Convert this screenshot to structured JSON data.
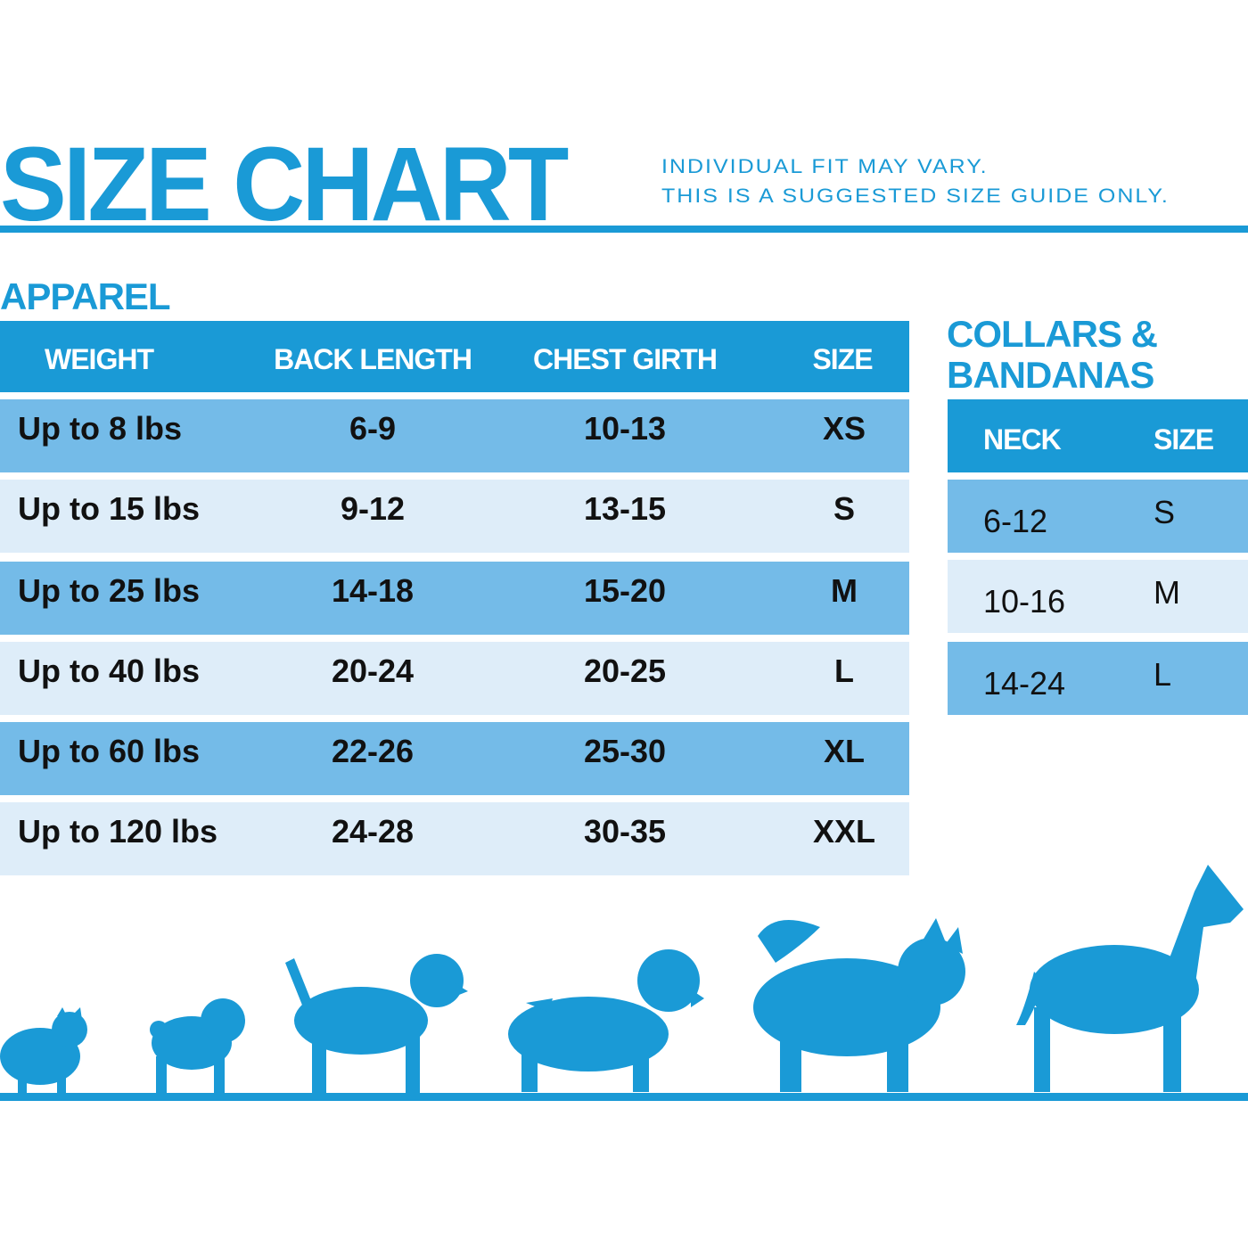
{
  "title": "SIZE CHART",
  "notes": [
    "INDIVIDUAL FIT MAY VARY.",
    "THIS IS A SUGGESTED SIZE GUIDE ONLY."
  ],
  "colors": {
    "accent": "#1a9ad6",
    "row_dark": "#74bbe8",
    "row_light": "#deedf9"
  },
  "apparel": {
    "heading": "APPAREL",
    "columns": [
      "WEIGHT",
      "BACK LENGTH",
      "CHEST GIRTH",
      "SIZE"
    ],
    "rows": [
      [
        "Up to 8 lbs",
        "6-9",
        "10-13",
        "XS"
      ],
      [
        "Up to 15 lbs",
        "9-12",
        "13-15",
        "S"
      ],
      [
        "Up to 25 lbs",
        "14-18",
        "15-20",
        "M"
      ],
      [
        "Up to 40 lbs",
        "20-24",
        "20-25",
        "L"
      ],
      [
        "Up to 60 lbs",
        "22-26",
        "25-30",
        "XL"
      ],
      [
        "Up to 120 lbs",
        "24-28",
        "30-35",
        "XXL"
      ]
    ]
  },
  "collars": {
    "heading_line1": "COLLARS &",
    "heading_line2": "BANDANAS",
    "columns": [
      "NECK",
      "SIZE"
    ],
    "rows": [
      [
        "6-12",
        "S"
      ],
      [
        "10-16",
        "M"
      ],
      [
        "14-24",
        "L"
      ]
    ]
  },
  "illustration": {
    "icons": [
      "pomeranian-icon",
      "pug-icon",
      "beagle-icon",
      "spaniel-icon",
      "husky-icon",
      "great-dane-icon"
    ]
  }
}
